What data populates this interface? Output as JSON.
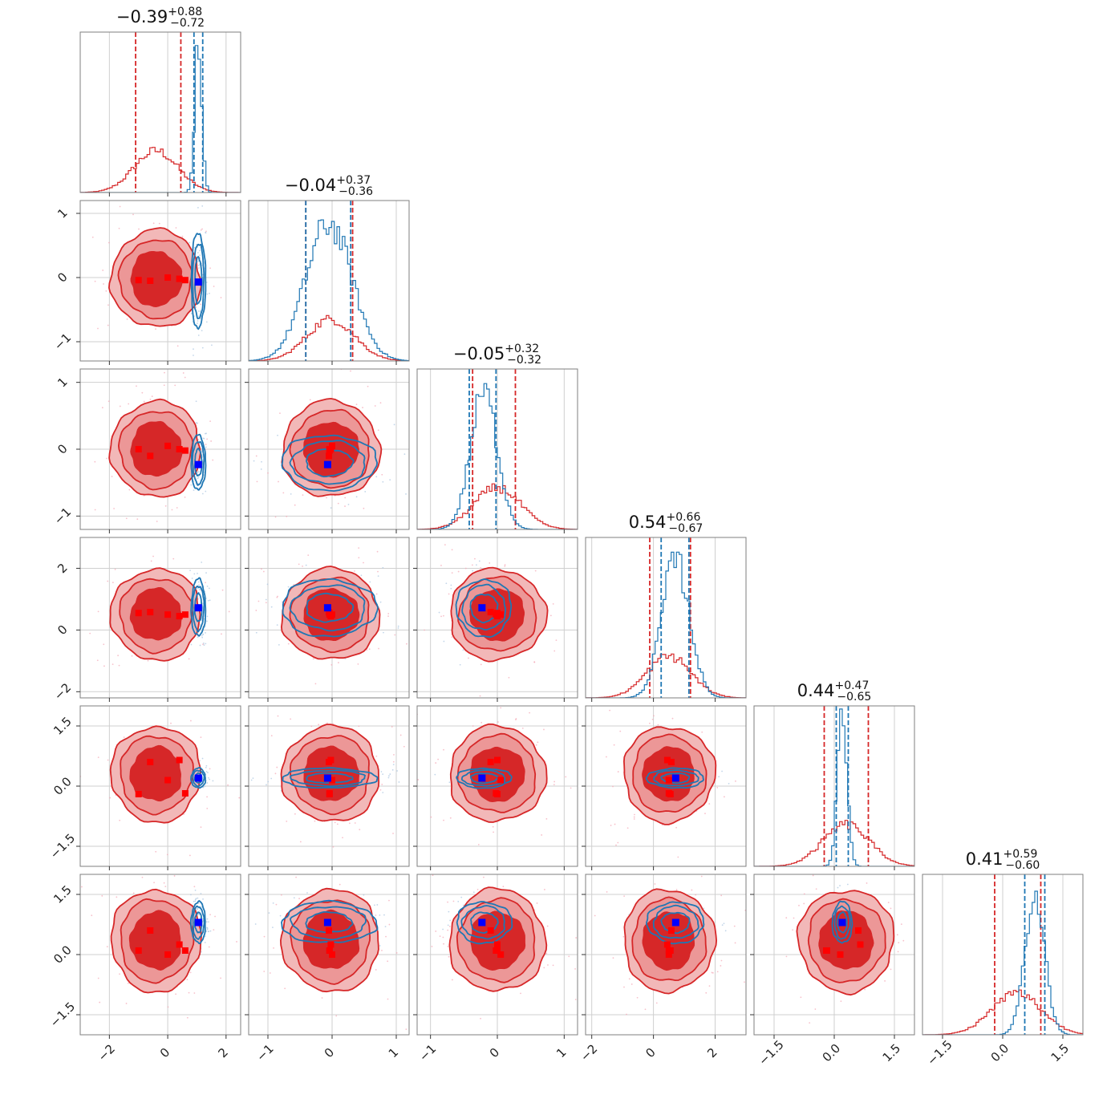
{
  "colors": {
    "red": "#d62728",
    "red_light": "#ef9a9a",
    "red_dark_fill": "#d62728",
    "blue": "#1f77b4",
    "blue_marker": "#0000ff",
    "red_marker": "#ff0000",
    "grid": "#cfcfcf",
    "frame": "#7f7f7f"
  },
  "chart_data": {
    "type": "corner",
    "n_params": 6,
    "grid": true,
    "params": [
      {
        "range": [
          -3.0,
          2.5
        ],
        "ticks": [
          -2,
          0,
          2
        ],
        "tick_labels": [
          "−2",
          "0",
          "2"
        ]
      },
      {
        "range": [
          -1.3,
          1.2
        ],
        "ticks": [
          -1,
          0,
          1
        ],
        "tick_labels": [
          "−1",
          "0",
          "1"
        ]
      },
      {
        "range": [
          -1.2,
          1.2
        ],
        "ticks": [
          -1,
          0,
          1
        ],
        "tick_labels": [
          "−1",
          "0",
          "1"
        ]
      },
      {
        "range": [
          -2.2,
          3.0
        ],
        "ticks": [
          -2,
          0,
          2
        ],
        "tick_labels": [
          "−2",
          "0",
          "2"
        ]
      },
      {
        "range": [
          -2.0,
          2.0
        ],
        "ticks": [
          -1.5,
          0.0,
          1.5
        ],
        "tick_labels": [
          "−1.5",
          "0.0",
          "1.5"
        ]
      },
      {
        "range": [
          -2.0,
          2.0
        ],
        "ticks": [
          -1.5,
          0.0,
          1.5
        ],
        "tick_labels": [
          "−1.5",
          "0.0",
          "1.5"
        ]
      }
    ],
    "titles": [
      {
        "median": "−0.39",
        "plus": "+0.88",
        "minus": "−0.72"
      },
      {
        "median": "−0.04",
        "plus": "+0.37",
        "minus": "−0.36"
      },
      {
        "median": "−0.05",
        "plus": "+0.32",
        "minus": "−0.32"
      },
      {
        "median": "0.54",
        "plus": "+0.66",
        "minus": "−0.67"
      },
      {
        "median": "0.44",
        "plus": "+0.47",
        "minus": "−0.65"
      },
      {
        "median": "0.41",
        "plus": "+0.59",
        "minus": "−0.60"
      }
    ],
    "series": [
      {
        "color": "#d62728",
        "means": [
          -0.4,
          -0.02,
          0.0,
          0.5,
          0.3,
          0.35
        ],
        "sds": [
          0.75,
          0.37,
          0.35,
          0.72,
          0.58,
          0.62
        ],
        "quantiles": [
          [
            -1.1,
            0.45
          ],
          [
            -0.41,
            0.32
          ],
          [
            -0.37,
            0.27
          ],
          [
            -0.12,
            1.2
          ],
          [
            -0.25,
            0.85
          ],
          [
            -0.2,
            0.95
          ]
        ],
        "hist_peak": 0.26
      },
      {
        "color": "#1f77b4",
        "means": [
          1.05,
          -0.05,
          -0.2,
          0.72,
          0.2,
          0.8
        ],
        "sds": [
          0.12,
          0.36,
          0.2,
          0.45,
          0.12,
          0.25
        ],
        "quantiles": [
          [
            0.9,
            1.2
          ],
          [
            -0.41,
            0.29
          ],
          [
            -0.42,
            -0.02
          ],
          [
            0.25,
            1.15
          ],
          [
            0.05,
            0.35
          ],
          [
            0.55,
            1.05
          ]
        ],
        "hist_peak": 0.95
      }
    ],
    "blue_truth": [
      1.05,
      -0.07,
      -0.23,
      0.72,
      0.2,
      0.8
    ],
    "red_points": [
      [
        -1.0,
        -0.04,
        0.0,
        0.55,
        -0.2,
        0.1
      ],
      [
        -0.6,
        -0.05,
        -0.1,
        0.58,
        0.6,
        0.6
      ],
      [
        0.4,
        -0.02,
        0.0,
        0.45,
        0.65,
        0.25
      ],
      [
        0.6,
        -0.04,
        -0.02,
        0.5,
        -0.18,
        0.1
      ],
      [
        0.0,
        0.0,
        0.05,
        0.5,
        0.15,
        0.0
      ]
    ]
  }
}
